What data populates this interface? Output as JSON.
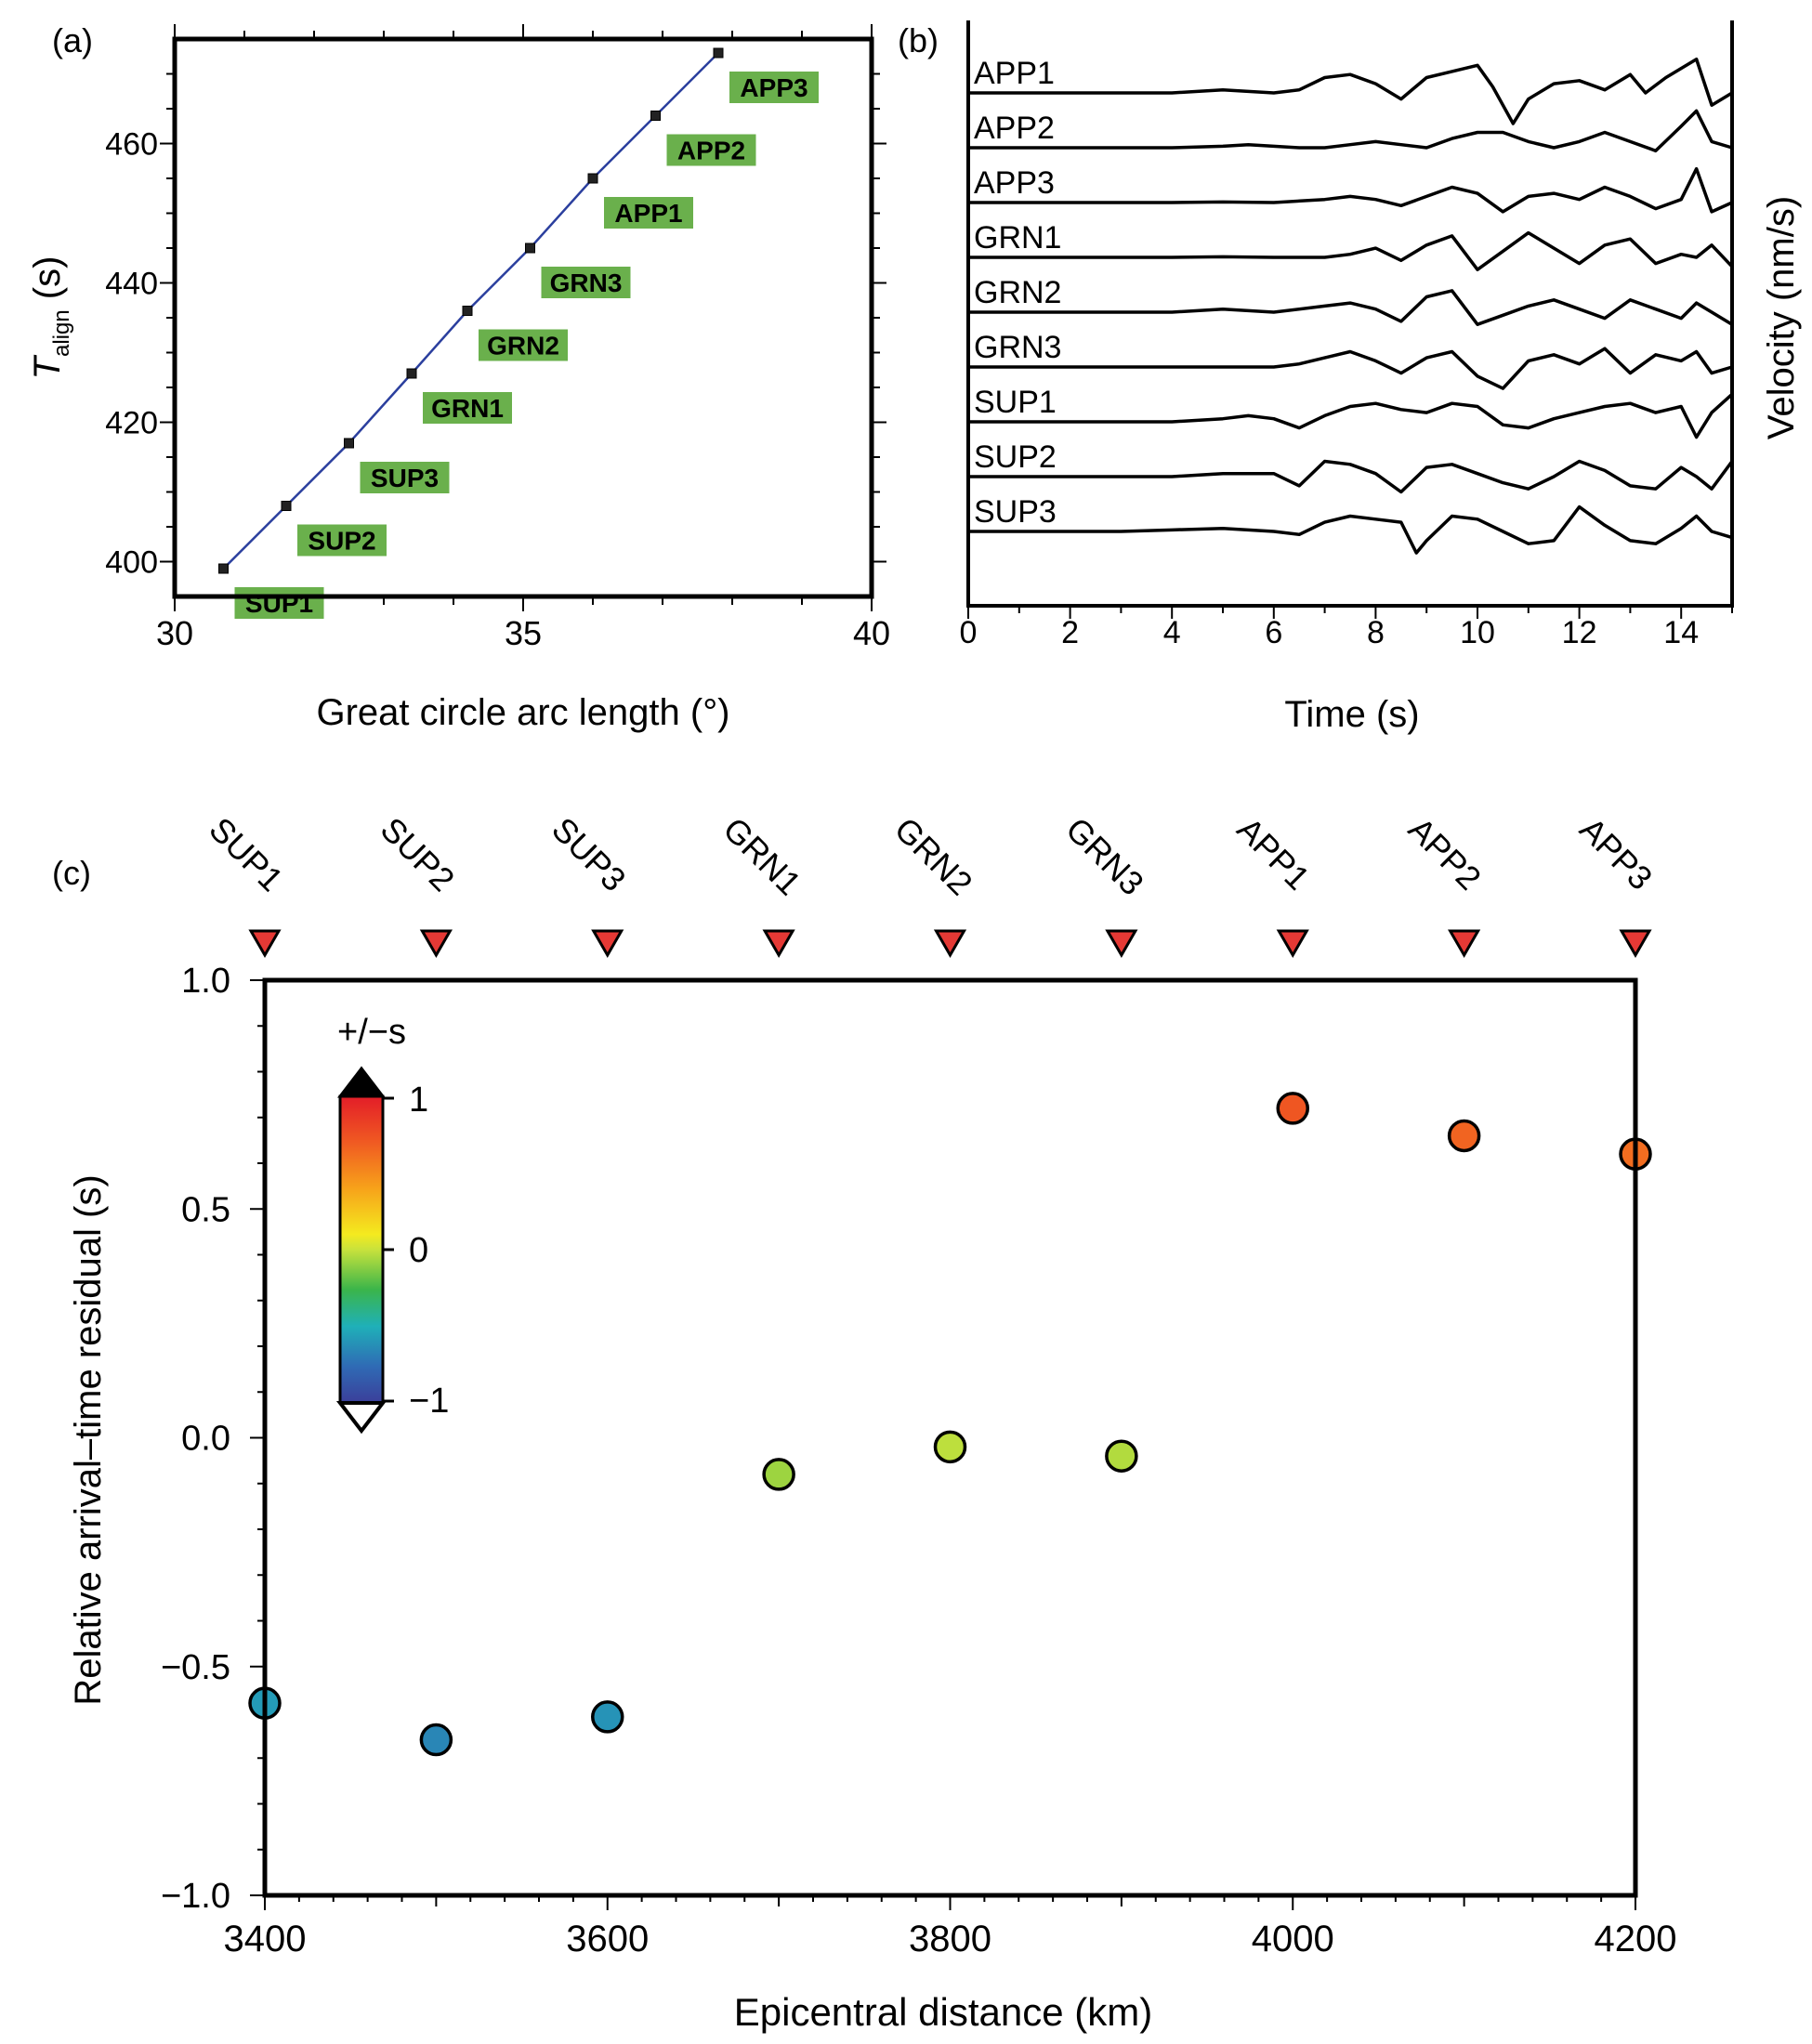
{
  "chart_data": [
    {
      "panel": "(a)",
      "type": "scatter",
      "xlabel": "Great circle arc length (°)",
      "ylabel_main": "T",
      "ylabel_sub": "align",
      "ylabel_unit": " (s)",
      "xlim": [
        30,
        40
      ],
      "ylim": [
        395,
        475
      ],
      "xticks": [
        "30",
        "35",
        "40"
      ],
      "yticks": [
        "400",
        "420",
        "440",
        "460"
      ],
      "label_color": "#6ab04c",
      "line_color": "#2b3f9e",
      "points": [
        {
          "label": "SUP1",
          "x": 30.7,
          "y": 399
        },
        {
          "label": "SUP2",
          "x": 31.6,
          "y": 408
        },
        {
          "label": "SUP3",
          "x": 32.5,
          "y": 417
        },
        {
          "label": "GRN1",
          "x": 33.4,
          "y": 427
        },
        {
          "label": "GRN2",
          "x": 34.2,
          "y": 436
        },
        {
          "label": "GRN3",
          "x": 35.1,
          "y": 445
        },
        {
          "label": "APP1",
          "x": 36.0,
          "y": 455
        },
        {
          "label": "APP2",
          "x": 36.9,
          "y": 464
        },
        {
          "label": "APP3",
          "x": 37.8,
          "y": 473
        }
      ]
    },
    {
      "panel": "(b)",
      "type": "line",
      "xlabel": "Time (s)",
      "ylabel": "Velocity (nm/s)",
      "xlim": [
        0,
        15
      ],
      "xticks": [
        "0",
        "2",
        "4",
        "6",
        "8",
        "10",
        "12",
        "14"
      ],
      "traces": [
        {
          "name": "APP1",
          "t": [
            0,
            1,
            2,
            3,
            4,
            4.5,
            5,
            5.5,
            6,
            6.5,
            7,
            7.5,
            8,
            8.5,
            9,
            9.5,
            10,
            10.3,
            10.7,
            11,
            11.5,
            12,
            12.5,
            13,
            13.3,
            13.7,
            14,
            14.3,
            14.6,
            15
          ],
          "v": [
            0,
            0,
            0,
            0,
            0,
            0.05,
            0.1,
            0.05,
            0,
            0.1,
            0.5,
            0.6,
            0.3,
            -0.2,
            0.5,
            0.7,
            0.9,
            0.2,
            -1.0,
            -0.2,
            0.3,
            0.4,
            0.1,
            0.6,
            0,
            0.5,
            0.8,
            1.1,
            -0.4,
            0
          ]
        },
        {
          "name": "APP2",
          "t": [
            0,
            1,
            2,
            3,
            4,
            5,
            5.5,
            6,
            6.5,
            7,
            7.5,
            8,
            8.5,
            9,
            9.5,
            10,
            10.5,
            11,
            11.5,
            12,
            12.5,
            13,
            13.5,
            14,
            14.3,
            14.6,
            15
          ],
          "v": [
            0,
            0,
            0,
            0,
            0,
            0.05,
            0.1,
            0.05,
            0,
            0,
            0.1,
            0.2,
            0.1,
            0,
            0.3,
            0.5,
            0.5,
            0.2,
            0,
            0.2,
            0.5,
            0.2,
            -0.1,
            0.7,
            1.2,
            0.2,
            0
          ]
        },
        {
          "name": "APP3",
          "t": [
            0,
            1,
            2,
            3,
            4,
            5,
            6,
            7,
            7.5,
            8,
            8.5,
            9,
            9.5,
            10,
            10.5,
            11,
            11.5,
            12,
            12.5,
            13,
            13.5,
            14,
            14.3,
            14.6,
            15
          ],
          "v": [
            0,
            0,
            0,
            0,
            0,
            0.02,
            0,
            0.1,
            0.2,
            0.1,
            -0.1,
            0.2,
            0.5,
            0.3,
            -0.3,
            0.2,
            0.3,
            0.1,
            0.5,
            0.2,
            -0.2,
            0.1,
            1.1,
            -0.3,
            0
          ]
        },
        {
          "name": "GRN1",
          "t": [
            0,
            1,
            2,
            3,
            4,
            5,
            6,
            7,
            7.5,
            8,
            8.5,
            9,
            9.5,
            10,
            10.5,
            11,
            11.5,
            12,
            12.5,
            13,
            13.5,
            14,
            14.3,
            14.6,
            15
          ],
          "v": [
            0,
            0,
            0,
            0,
            0,
            0.02,
            0,
            0,
            0.1,
            0.3,
            -0.1,
            0.4,
            0.7,
            -0.4,
            0.2,
            0.8,
            0.3,
            -0.2,
            0.4,
            0.6,
            -0.2,
            0.1,
            0,
            0.4,
            -0.3
          ]
        },
        {
          "name": "GRN2",
          "t": [
            0,
            1,
            2,
            3,
            4,
            5,
            6,
            7,
            7.5,
            8,
            8.5,
            9,
            9.5,
            10,
            10.5,
            11,
            11.5,
            12,
            12.5,
            13,
            13.5,
            14,
            14.3,
            14.6,
            15
          ],
          "v": [
            0,
            0,
            0,
            0,
            0,
            0.1,
            0,
            0.2,
            0.3,
            0.1,
            -0.3,
            0.5,
            0.7,
            -0.4,
            -0.1,
            0.2,
            0.4,
            0.1,
            -0.2,
            0.4,
            0.1,
            -0.2,
            0.3,
            0,
            -0.4
          ]
        },
        {
          "name": "GRN3",
          "t": [
            0,
            1,
            2,
            3,
            4,
            5,
            6,
            6.5,
            7,
            7.5,
            8,
            8.5,
            9,
            9.5,
            10,
            10.5,
            11,
            11.5,
            12,
            12.5,
            13,
            13.5,
            14,
            14.3,
            14.6,
            15
          ],
          "v": [
            0,
            0,
            0,
            0,
            0,
            0,
            0,
            0.1,
            0.3,
            0.5,
            0.2,
            -0.2,
            0.3,
            0.5,
            -0.3,
            -0.7,
            0.2,
            0.4,
            0.1,
            0.6,
            -0.2,
            0.4,
            0.2,
            0.5,
            -0.2,
            0
          ]
        },
        {
          "name": "SUP1",
          "t": [
            0,
            1,
            2,
            3,
            4,
            5,
            5.5,
            6,
            6.5,
            7,
            7.5,
            8,
            8.5,
            9,
            9.5,
            10,
            10.5,
            11,
            11.5,
            12,
            12.5,
            13,
            13.5,
            14,
            14.3,
            14.6,
            15
          ],
          "v": [
            0,
            0,
            0,
            0,
            0,
            0.1,
            0.2,
            0.1,
            -0.2,
            0.2,
            0.5,
            0.6,
            0.4,
            0.3,
            0.6,
            0.5,
            -0.1,
            -0.2,
            0.1,
            0.3,
            0.5,
            0.6,
            0.3,
            0.5,
            -0.5,
            0.3,
            0.9
          ]
        },
        {
          "name": "SUP2",
          "t": [
            0,
            1,
            2,
            3,
            4,
            5,
            6,
            6.5,
            7,
            7.5,
            8,
            8.5,
            9,
            9.5,
            10,
            10.5,
            11,
            11.5,
            12,
            12.5,
            13,
            13.5,
            14,
            14.3,
            14.6,
            15
          ],
          "v": [
            0,
            0,
            0,
            0,
            0,
            0.1,
            0.1,
            -0.3,
            0.5,
            0.4,
            0.1,
            -0.5,
            0.3,
            0.4,
            0.1,
            -0.2,
            -0.4,
            0,
            0.5,
            0.2,
            -0.3,
            -0.4,
            0.3,
            0,
            -0.4,
            0.5
          ]
        },
        {
          "name": "SUP3",
          "t": [
            0,
            1,
            2,
            3,
            4,
            5,
            6,
            6.5,
            7,
            7.5,
            8,
            8.5,
            8.8,
            9,
            9.5,
            10,
            10.5,
            11,
            11.5,
            12,
            12.5,
            13,
            13.5,
            14,
            14.3,
            14.6,
            15
          ],
          "v": [
            0,
            0,
            0,
            0,
            0.05,
            0.1,
            0,
            -0.1,
            0.3,
            0.5,
            0.4,
            0.3,
            -0.7,
            -0.3,
            0.5,
            0.4,
            0,
            -0.4,
            -0.3,
            0.8,
            0.2,
            -0.3,
            -0.4,
            0.1,
            0.5,
            0,
            -0.2
          ]
        }
      ]
    },
    {
      "panel": "(c)",
      "type": "scatter",
      "xlabel": "Epicentral distance (km)",
      "ylabel": "Relative arrival–time residual (s)",
      "xlim": [
        3360,
        4210
      ],
      "ylim": [
        -1.0,
        1.0
      ],
      "xticks": [
        "3400",
        "3600",
        "3800",
        "4000",
        "4200"
      ],
      "yticks": [
        "−1.0",
        "−0.5",
        "0.0",
        "0.5",
        "1.0"
      ],
      "colorbar": {
        "title": "+/−s",
        "labels": [
          "1",
          "0",
          "−1"
        ],
        "range": [
          -1,
          1
        ]
      },
      "stations": [
        "SUP1",
        "SUP2",
        "SUP3",
        "GRN1",
        "GRN2",
        "GRN3",
        "APP1",
        "APP2",
        "APP3"
      ],
      "station_marker_color": "#e53935",
      "points": [
        {
          "label": "SUP1",
          "x": 3400,
          "y": -0.58
        },
        {
          "label": "SUP2",
          "x": 3500,
          "y": -0.66
        },
        {
          "label": "SUP3",
          "x": 3600,
          "y": -0.61
        },
        {
          "label": "GRN1",
          "x": 3700,
          "y": -0.08
        },
        {
          "label": "GRN2",
          "x": 3800,
          "y": -0.02
        },
        {
          "label": "GRN3",
          "x": 3900,
          "y": -0.04
        },
        {
          "label": "APP1",
          "x": 4000,
          "y": 0.72
        },
        {
          "label": "APP2",
          "x": 4100,
          "y": 0.66
        },
        {
          "label": "APP3",
          "x": 4200,
          "y": 0.62
        }
      ]
    }
  ]
}
